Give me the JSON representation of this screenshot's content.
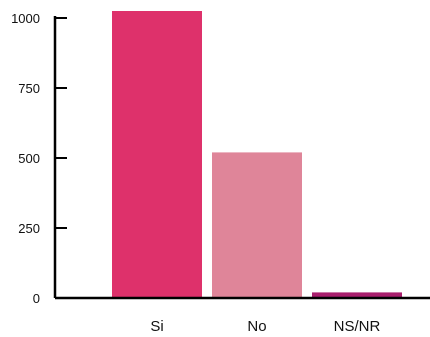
{
  "chart_data": {
    "type": "bar",
    "title": "",
    "xlabel": "",
    "ylabel": "",
    "categories": [
      "Si",
      "No",
      "NS/NR"
    ],
    "values": [
      1025,
      520,
      20
    ],
    "ylim": [
      0,
      1000
    ],
    "yticks": [
      0,
      250,
      500,
      750,
      1000
    ],
    "ytick_labels": [
      "0",
      "250",
      "500",
      "750",
      "1000"
    ],
    "colors": [
      "#de316b",
      "#df8599",
      "#a91e6d"
    ],
    "axis_color": "#000000",
    "grid": false,
    "legend": "none"
  }
}
